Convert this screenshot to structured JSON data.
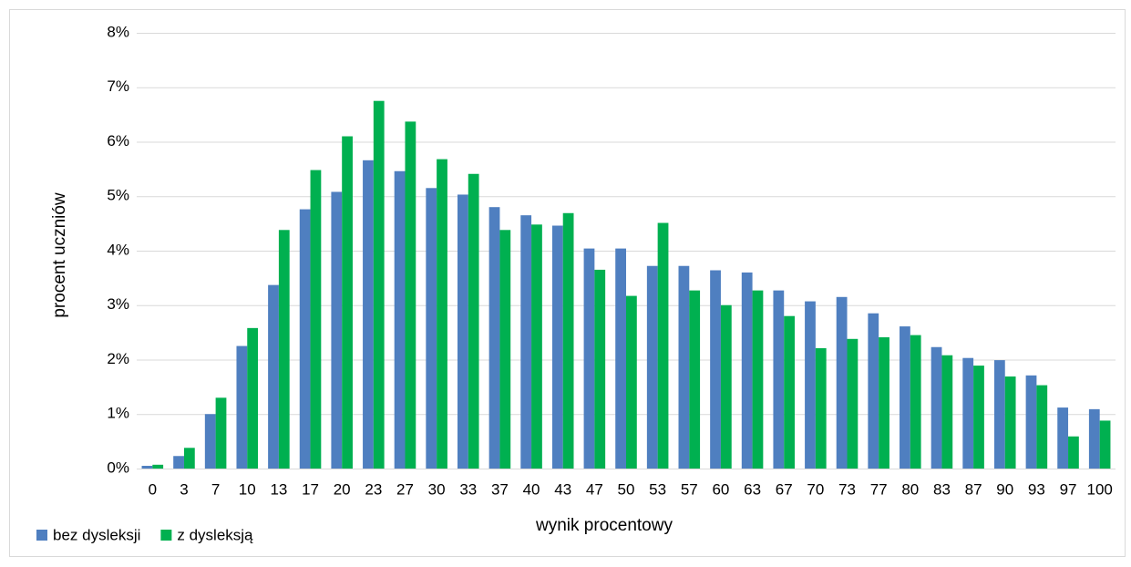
{
  "chart_data": {
    "type": "bar",
    "xlabel": "wynik procentowy",
    "ylabel": "procent uczniów",
    "categories": [
      "0",
      "3",
      "7",
      "10",
      "13",
      "17",
      "20",
      "23",
      "27",
      "30",
      "33",
      "37",
      "40",
      "43",
      "47",
      "50",
      "53",
      "57",
      "60",
      "63",
      "67",
      "70",
      "73",
      "77",
      "80",
      "83",
      "87",
      "90",
      "93",
      "97",
      "100"
    ],
    "series": [
      {
        "name": "bez dysleksji",
        "color": "#4f7fc0",
        "values": [
          0.05,
          0.23,
          1.0,
          2.25,
          3.37,
          4.76,
          5.08,
          5.66,
          5.46,
          5.15,
          5.03,
          4.8,
          4.65,
          4.46,
          4.04,
          4.04,
          3.72,
          3.72,
          3.64,
          3.6,
          3.27,
          3.07,
          3.15,
          2.85,
          2.61,
          2.23,
          2.03,
          1.99,
          1.71,
          1.12,
          1.09
        ]
      },
      {
        "name": "z dysleksją",
        "color": "#00b050",
        "values": [
          0.07,
          0.38,
          1.3,
          2.58,
          4.38,
          5.48,
          6.1,
          6.75,
          6.37,
          5.68,
          5.41,
          4.38,
          4.48,
          4.69,
          3.65,
          3.17,
          4.51,
          3.27,
          3.0,
          3.27,
          2.8,
          2.21,
          2.38,
          2.41,
          2.45,
          2.08,
          1.89,
          1.69,
          1.53,
          0.59,
          0.88
        ]
      }
    ],
    "ylim": [
      0,
      8
    ],
    "yticks": [
      {
        "value": 0,
        "label": "0%"
      },
      {
        "value": 1,
        "label": "1%"
      },
      {
        "value": 2,
        "label": "2%"
      },
      {
        "value": 3,
        "label": "3%"
      },
      {
        "value": 4,
        "label": "4%"
      },
      {
        "value": 5,
        "label": "5%"
      },
      {
        "value": 6,
        "label": "6%"
      },
      {
        "value": 7,
        "label": "7%"
      },
      {
        "value": 8,
        "label": "8%"
      }
    ],
    "grid": true,
    "legend": "bottom-left"
  }
}
